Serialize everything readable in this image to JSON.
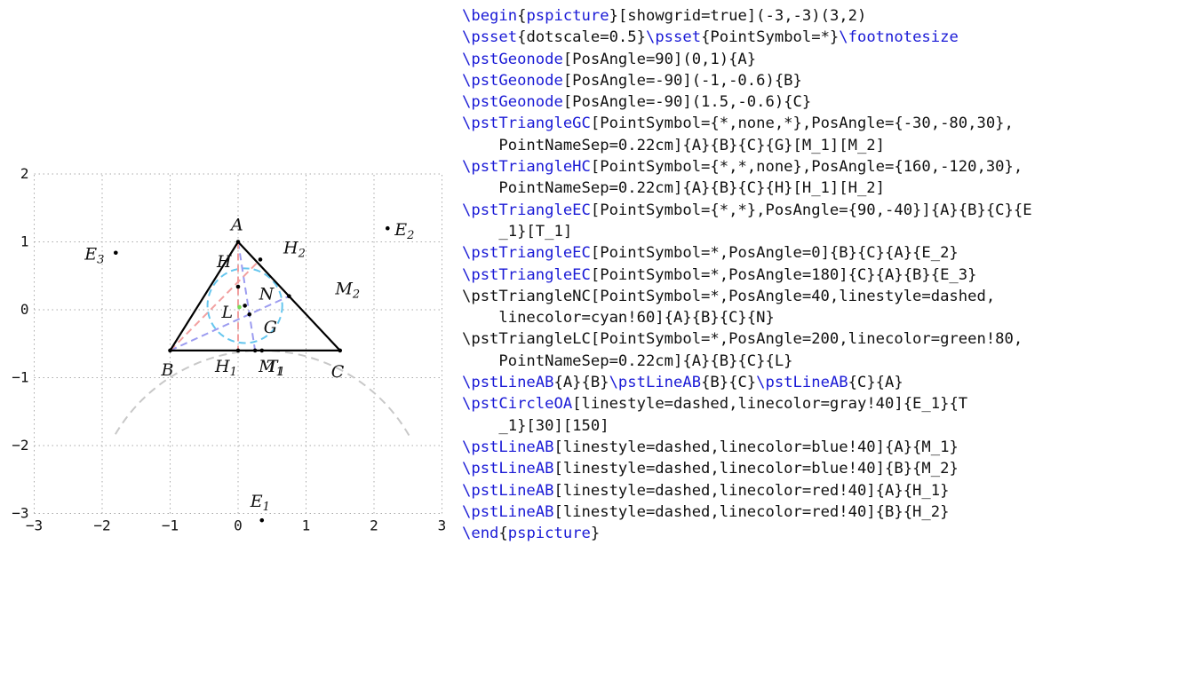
{
  "diagram": {
    "x_range": [
      -3,
      3
    ],
    "y_range": [
      -3,
      2
    ],
    "showgrid": true,
    "x_ticks": [
      "−3",
      "−2",
      "−1",
      "0",
      "1",
      "2",
      "3"
    ],
    "y_ticks": [
      "−3",
      "−2",
      "−1",
      "0",
      "1",
      "2"
    ],
    "points": {
      "A": {
        "name": "A",
        "sub": "",
        "x": 0,
        "y": 1
      },
      "B": {
        "name": "B",
        "sub": "",
        "x": -1,
        "y": -0.6
      },
      "C": {
        "name": "C",
        "sub": "",
        "x": 1.5,
        "y": -0.6
      },
      "G": {
        "name": "G",
        "sub": "",
        "x": 0.167,
        "y": -0.067
      },
      "H": {
        "name": "H",
        "sub": "",
        "x": 0,
        "y": 0.34
      },
      "H1": {
        "name": "H",
        "sub": "1",
        "x": 0,
        "y": -0.6
      },
      "H2": {
        "name": "H",
        "sub": "2",
        "x": 0.327,
        "y": 0.74
      },
      "M1": {
        "name": "M",
        "sub": "1",
        "x": 0.25,
        "y": -0.6
      },
      "M2": {
        "name": "M",
        "sub": "2",
        "x": 0.75,
        "y": 0.2
      },
      "N": {
        "name": "N",
        "sub": "",
        "x": 0.1,
        "y": 0.06
      },
      "L": {
        "name": "L",
        "sub": "",
        "x": 0.02,
        "y": 0.04
      },
      "T1": {
        "name": "T",
        "sub": "1",
        "x": 0.35,
        "y": -0.6
      },
      "E1": {
        "name": "E",
        "sub": "1",
        "x": 0.35,
        "y": -3.1
      },
      "E2": {
        "name": "E",
        "sub": "2",
        "x": 2.2,
        "y": 1.2
      },
      "E3": {
        "name": "E",
        "sub": "3",
        "x": -1.8,
        "y": 0.84
      }
    },
    "nine_point_circle": {
      "center": [
        0.1,
        0.06
      ],
      "radius": 0.55,
      "color": "#66c6ee"
    },
    "excircle_arc": {
      "center": [
        0.35,
        -3.1
      ],
      "radius": 2.5,
      "start_deg": 30,
      "end_deg": 150,
      "color": "#c8c8c8"
    },
    "colors": {
      "median": "#9c9cf0",
      "altitude": "#f2a0a0",
      "incenter": "#77dd55",
      "grid": "#aaaaaa"
    }
  },
  "code_lines": [
    [
      {
        "t": "\\begin",
        "kw": true
      },
      {
        "t": "{"
      },
      {
        "t": "pspicture",
        "kw": true
      },
      {
        "t": "}[showgrid=true](-3,-3)(3,2)"
      }
    ],
    [
      {
        "t": "\\psset",
        "kw": true
      },
      {
        "t": "{dotscale=0.5}"
      },
      {
        "t": "\\psset",
        "kw": true
      },
      {
        "t": "{PointSymbol=*}"
      },
      {
        "t": "\\footnotesize",
        "kw": true
      }
    ],
    [
      {
        "t": "\\pstGeonode",
        "kw": true
      },
      {
        "t": "[PosAngle=90](0,1){A}"
      }
    ],
    [
      {
        "t": "\\pstGeonode",
        "kw": true
      },
      {
        "t": "[PosAngle=-90](-1,-0.6){B}"
      }
    ],
    [
      {
        "t": "\\pstGeonode",
        "kw": true
      },
      {
        "t": "[PosAngle=-90](1.5,-0.6){C}"
      }
    ],
    [
      {
        "t": "\\pstTriangleGC",
        "kw": true
      },
      {
        "t": "[PointSymbol={*,none,*},PosAngle={-30,-80,30},"
      }
    ],
    [
      {
        "t": "    PointNameSep=0.22cm]{A}{B}{C}{G}[M_1][M_2]"
      }
    ],
    [
      {
        "t": "\\pstTriangleHC",
        "kw": true
      },
      {
        "t": "[PointSymbol={*,*,none},PosAngle={160,-120,30},"
      }
    ],
    [
      {
        "t": "    PointNameSep=0.22cm]{A}{B}{C}{H}[H_1][H_2]"
      }
    ],
    [
      {
        "t": "\\pstTriangleEC",
        "kw": true
      },
      {
        "t": "[PointSymbol={*,*},PosAngle={90,-40}]{A}{B}{C}{E"
      }
    ],
    [
      {
        "t": "    _1}[T_1]"
      }
    ],
    [
      {
        "t": "\\pstTriangleEC",
        "kw": true
      },
      {
        "t": "[PointSymbol=*,PosAngle=0]{B}{C}{A}{E_2}"
      }
    ],
    [
      {
        "t": "\\pstTriangleEC",
        "kw": true
      },
      {
        "t": "[PointSymbol=*,PosAngle=180]{C}{A}{B}{E_3}"
      }
    ],
    [
      {
        "t": "\\pstTriangleNC[PointSymbol=*,PosAngle=40,linestyle=dashed,"
      }
    ],
    [
      {
        "t": "    linecolor=cyan!60]{A}{B}{C}{N}"
      }
    ],
    [
      {
        "t": "\\pstTriangleLC[PointSymbol=*,PosAngle=200,linecolor=green!80,"
      }
    ],
    [
      {
        "t": "    PointNameSep=0.22cm]{A}{B}{C}{L}"
      }
    ],
    [
      {
        "t": "\\pstLineAB",
        "kw": true
      },
      {
        "t": "{A}{B}"
      },
      {
        "t": "\\pstLineAB",
        "kw": true
      },
      {
        "t": "{B}{C}"
      },
      {
        "t": "\\pstLineAB",
        "kw": true
      },
      {
        "t": "{C}{A}"
      }
    ],
    [
      {
        "t": "\\pstCircleOA",
        "kw": true
      },
      {
        "t": "[linestyle=dashed,linecolor=gray!40]{E_1}{T"
      }
    ],
    [
      {
        "t": "    _1}[30][150]"
      }
    ],
    [
      {
        "t": "\\pstLineAB",
        "kw": true
      },
      {
        "t": "[linestyle=dashed,linecolor=blue!40]{A}{M_1}"
      }
    ],
    [
      {
        "t": "\\pstLineAB",
        "kw": true
      },
      {
        "t": "[linestyle=dashed,linecolor=blue!40]{B}{M_2}"
      }
    ],
    [
      {
        "t": "\\pstLineAB",
        "kw": true
      },
      {
        "t": "[linestyle=dashed,linecolor=red!40]{A}{H_1}"
      }
    ],
    [
      {
        "t": "\\pstLineAB",
        "kw": true
      },
      {
        "t": "[linestyle=dashed,linecolor=red!40]{B}{H_2}"
      }
    ],
    [
      {
        "t": "\\end",
        "kw": true
      },
      {
        "t": "{"
      },
      {
        "t": "pspicture",
        "kw": true
      },
      {
        "t": "}"
      }
    ]
  ]
}
